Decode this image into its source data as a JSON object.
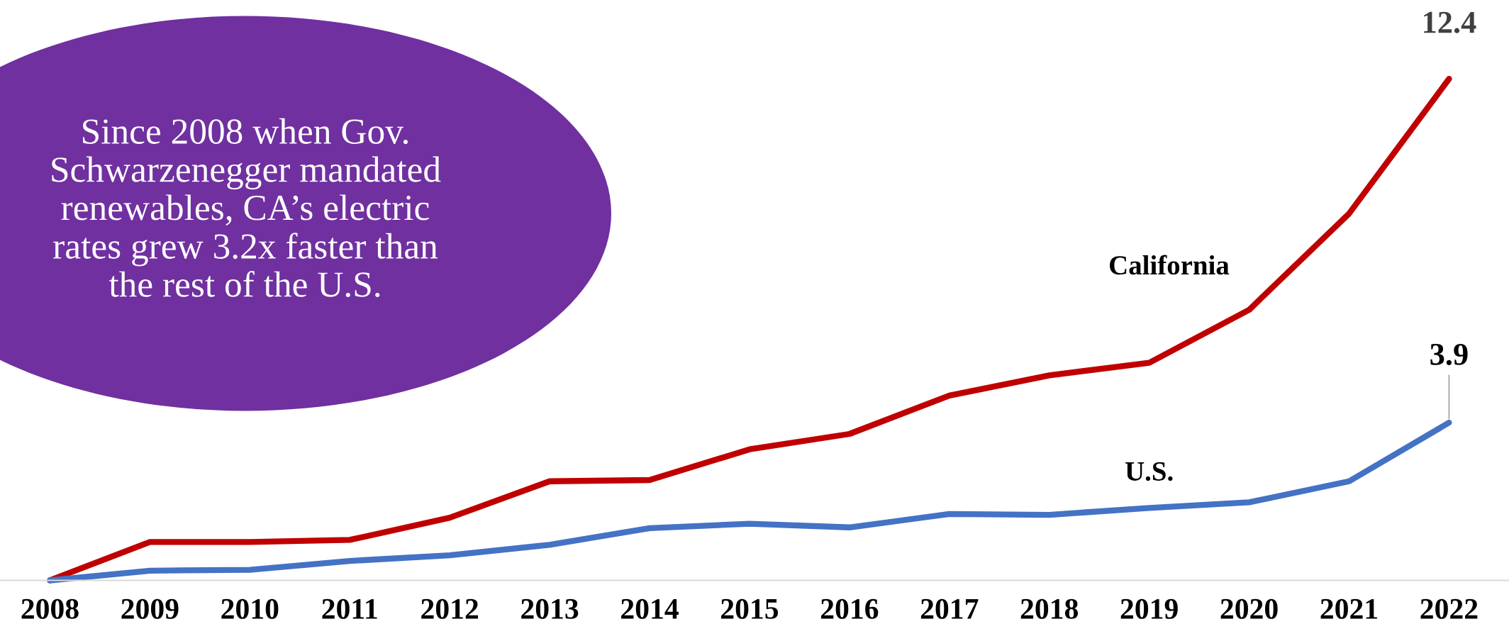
{
  "chart_data": {
    "type": "line",
    "categories": [
      "2008",
      "2009",
      "2010",
      "2011",
      "2012",
      "2013",
      "2014",
      "2015",
      "2016",
      "2017",
      "2018",
      "2019",
      "2020",
      "2021",
      "2022"
    ],
    "series": [
      {
        "name": "California",
        "color": "#c00000",
        "values": [
          0,
          0.95,
          0.95,
          1.0,
          1.55,
          2.45,
          2.48,
          3.24,
          3.62,
          4.57,
          5.07,
          5.38,
          6.69,
          9.07,
          12.4
        ],
        "value_labels": [
          null,
          null,
          null,
          null,
          null,
          null,
          null,
          null,
          null,
          null,
          null,
          null,
          null,
          null,
          "12.4"
        ]
      },
      {
        "name": "U.S.",
        "color": "#4472c4",
        "values": [
          0,
          0.24,
          0.26,
          0.48,
          0.62,
          0.88,
          1.29,
          1.4,
          1.31,
          1.64,
          1.62,
          1.79,
          1.93,
          2.45,
          3.9
        ],
        "value_labels": [
          null,
          null,
          null,
          null,
          null,
          null,
          null,
          null,
          null,
          null,
          null,
          null,
          null,
          null,
          "3.9"
        ]
      }
    ],
    "grid": false,
    "legend": false,
    "marker": "none",
    "line_style": "solid",
    "tick_labels": "x",
    "annotations": [
      "Since 2008 when Gov.\nSchwarzenegger mandated\nrenewables, CA’s electric\nrates grew 3.2x faster than\nthe rest of the U.S."
    ]
  }
}
